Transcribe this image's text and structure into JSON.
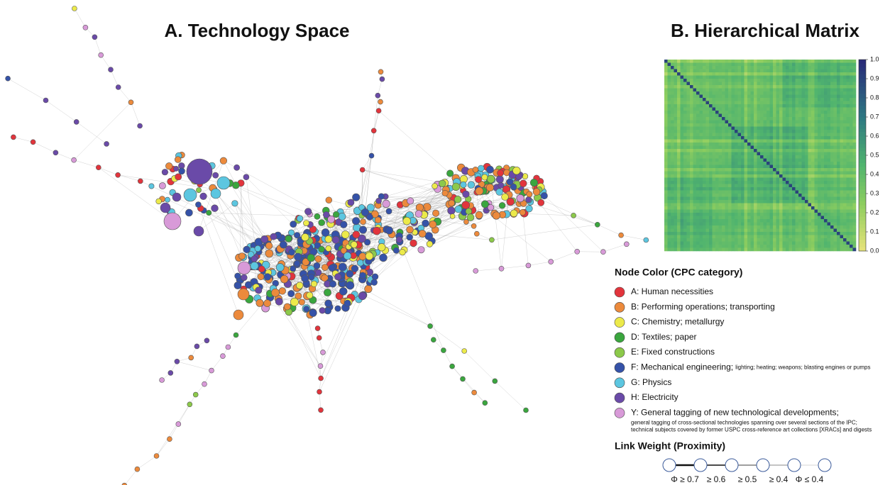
{
  "panel_a": {
    "title": "A. Technology Space"
  },
  "panel_b": {
    "title": "B. Hierarchical Matrix",
    "colorbar": {
      "ticks": [
        {
          "value": 0,
          "label": "0.0"
        },
        {
          "value": 0.1,
          "label": "0.1"
        },
        {
          "value": 0.2,
          "label": "0.2"
        },
        {
          "value": 0.3,
          "label": "0.3"
        },
        {
          "value": 0.4,
          "label": "0.4"
        },
        {
          "value": 0.5,
          "label": "0.5"
        },
        {
          "value": 0.6,
          "label": "0.6"
        },
        {
          "value": 0.7,
          "label": "0.7"
        },
        {
          "value": 0.8,
          "label": "0.8"
        },
        {
          "value": 0.9,
          "label": "0.9"
        },
        {
          "value": 1,
          "label": "1.0"
        }
      ]
    }
  },
  "legend": {
    "title": "Node Color (CPC category)",
    "categories": [
      {
        "label": "A: Human necessities",
        "color": "#e2343c"
      },
      {
        "label": "B: Performing operations; transporting",
        "color": "#ec8a3c"
      },
      {
        "label": "C: Chemistry; metallurgy",
        "color": "#ecea4a"
      },
      {
        "label": "D: Textiles; paper",
        "color": "#3aa63e"
      },
      {
        "label": "E: Fixed constructions",
        "color": "#8cc94a"
      },
      {
        "label": "F: Mechanical engineering;",
        "detail": "lighting; heating; weapons; blasting engines or pumps",
        "color": "#3552a8"
      },
      {
        "label": "G: Physics",
        "color": "#5cc6e0"
      },
      {
        "label": "H: Electricity",
        "color": "#6a4aa8"
      },
      {
        "label": "Y: General tagging of new technological developments;",
        "notes": [
          "general tagging of cross-sectional technologies spanning over several sections of the IPC;",
          "technical subjects covered by former USPC cross-reference art collections [XRACs] and digests"
        ],
        "color": "#d89ad8"
      }
    ]
  },
  "link_weight": {
    "title": "Link Weight (Proximity)",
    "labels": [
      "Φ ≥ 0.7",
      "≥ 0.6",
      "≥ 0.5",
      "≥ 0.4",
      "Φ ≤ 0.4"
    ]
  }
}
